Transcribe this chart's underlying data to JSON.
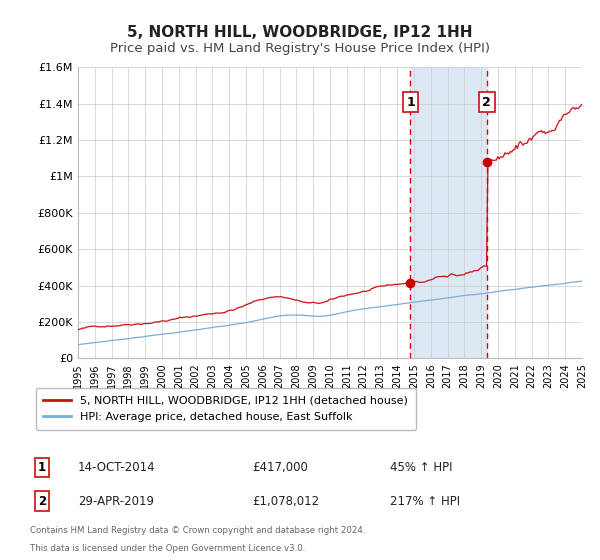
{
  "title": "5, NORTH HILL, WOODBRIDGE, IP12 1HH",
  "subtitle": "Price paid vs. HM Land Registry's House Price Index (HPI)",
  "xlim": [
    1995,
    2025
  ],
  "ylim": [
    0,
    1600000
  ],
  "yticks": [
    0,
    200000,
    400000,
    600000,
    800000,
    1000000,
    1200000,
    1400000,
    1600000
  ],
  "ytick_labels": [
    "£0",
    "£200K",
    "£400K",
    "£600K",
    "£800K",
    "£1M",
    "£1.2M",
    "£1.4M",
    "£1.6M"
  ],
  "marker1_x": 2014.79,
  "marker1_y": 417000,
  "marker2_x": 2019.33,
  "marker2_y": 1078012,
  "shade_x1": 2014.79,
  "shade_x2": 2019.33,
  "shade_color": "#dce9f5",
  "vline_color": "#dd0000",
  "marker_color": "#cc0000",
  "line1_color": "#cc1111",
  "line2_color": "#7aadda",
  "legend_label1": "5, NORTH HILL, WOODBRIDGE, IP12 1HH (detached house)",
  "legend_label2": "HPI: Average price, detached house, East Suffolk",
  "ann1_num": "1",
  "ann1_date": "14-OCT-2014",
  "ann1_price": "£417,000",
  "ann1_hpi": "45% ↑ HPI",
  "ann2_num": "2",
  "ann2_date": "29-APR-2019",
  "ann2_price": "£1,078,012",
  "ann2_hpi": "217% ↑ HPI",
  "footer1": "Contains HM Land Registry data © Crown copyright and database right 2024.",
  "footer2": "This data is licensed under the Open Government Licence v3.0.",
  "bg_color": "#ffffff",
  "grid_color": "#cccccc",
  "title_fontsize": 11,
  "subtitle_fontsize": 9.5,
  "box_edge_color": "#cc2222"
}
